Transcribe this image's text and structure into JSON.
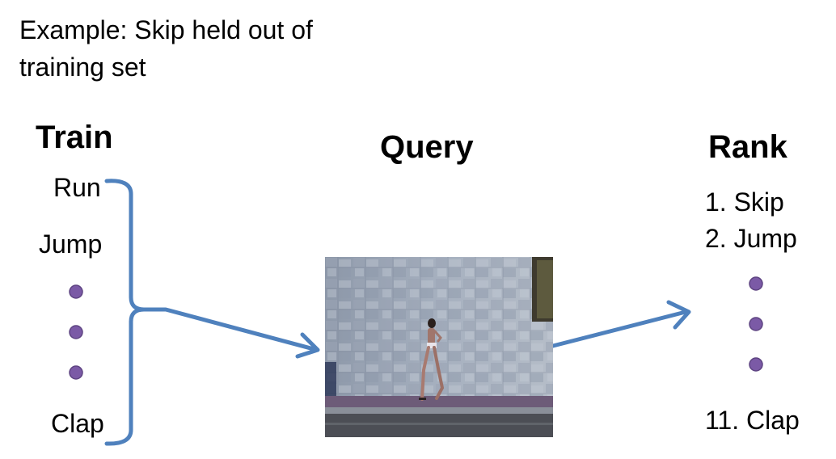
{
  "caption": {
    "line1": "Example: Skip held out of",
    "line2": "training set"
  },
  "train": {
    "heading": "Train",
    "items": [
      "Run",
      "Jump",
      "Clap"
    ]
  },
  "query": {
    "heading": "Query"
  },
  "rank": {
    "heading": "Rank",
    "items": [
      "1. Skip",
      "2. Jump",
      "11.  Clap"
    ]
  },
  "colors": {
    "arrow": "#4f81bd",
    "dot": "#7b5aa6",
    "dot_outline": "#5e4482"
  }
}
